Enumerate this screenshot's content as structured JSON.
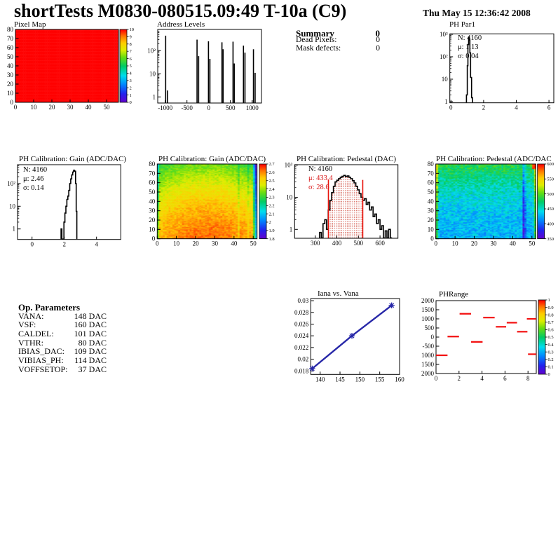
{
  "header": {
    "title": "shortTests M0830-080515.09:49 T-10a (C9)",
    "date": "Thu May 15 12:36:42 2008"
  },
  "summary": {
    "heading": "Summary",
    "total": "0",
    "rows": [
      {
        "label": "Dead Pixels:",
        "value": "0"
      },
      {
        "label": "Mask defects:",
        "value": "0"
      }
    ]
  },
  "op_parameters": {
    "heading": "Op. Parameters",
    "unit": "DAC",
    "rows": [
      {
        "label": "VANA:",
        "value": "148 DAC"
      },
      {
        "label": "VSF:",
        "value": "160 DAC"
      },
      {
        "label": "CALDEL:",
        "value": "101 DAC"
      },
      {
        "label": "VTHR:",
        "value": "80 DAC"
      },
      {
        "label": "IBIAS_DAC:",
        "value": "109 DAC"
      },
      {
        "label": "VIBIAS_PH:",
        "value": "114 DAC"
      },
      {
        "label": "VOFFSETOP:",
        "value": "37 DAC"
      }
    ]
  },
  "chart_data": [
    {
      "id": "pixel_map",
      "type": "heatmap",
      "title": "Pixel Map",
      "x_ticks": [
        0,
        10,
        20,
        30,
        40,
        50
      ],
      "y_ticks": [
        0,
        10,
        20,
        30,
        40,
        50,
        60,
        70,
        80
      ],
      "nx": 52,
      "ny": 80,
      "uniform": 10,
      "zmin": 0,
      "zmax": 10,
      "colorbar_labels": [
        "10",
        "9",
        "8",
        "7",
        "6",
        "5",
        "4",
        "3",
        "2",
        "1",
        "0"
      ]
    },
    {
      "id": "address_levels",
      "type": "spikes",
      "title": "Address Levels",
      "x_ticks": [
        -1000,
        -500,
        0,
        500,
        1000
      ],
      "log_labels": [
        "1",
        "10",
        "10²"
      ],
      "spikes": [
        [
          -990,
          445
        ],
        [
          -948,
          1.9
        ],
        [
          -268,
          300
        ],
        [
          -231,
          58
        ],
        [
          -5,
          255
        ],
        [
          28,
          44
        ],
        [
          305,
          230
        ],
        [
          332,
          115
        ],
        [
          560,
          245
        ],
        [
          588,
          28
        ],
        [
          800,
          165
        ],
        [
          835,
          82
        ],
        [
          1030,
          115
        ],
        [
          1068,
          11
        ]
      ]
    },
    {
      "id": "ph_par1",
      "type": "hist",
      "title": "PH Par1",
      "stats": [
        {
          "text": "N: 4160",
          "color": "#000000"
        },
        {
          "text": "μ: 1.13",
          "color": "#000000"
        },
        {
          "text": "σ: 0.04",
          "color": "#000000"
        }
      ],
      "x_ticks": [
        0,
        2,
        4,
        6
      ],
      "log_labels": [
        "1",
        "10",
        "10²",
        "10³"
      ],
      "edges": [
        0.95,
        1.0,
        1.04,
        1.08,
        1.12,
        1.16,
        1.2,
        1.26,
        1.32
      ],
      "counts": [
        2,
        40,
        350,
        750,
        560,
        150,
        12,
        1.5
      ]
    },
    {
      "id": "gain_hist",
      "type": "hist",
      "title": "PH Calibration: Gain (ADC/DAC)",
      "stats": [
        {
          "text": "N: 4160",
          "color": "#000000"
        },
        {
          "text": "μ: 2.46",
          "color": "#000000"
        },
        {
          "text": "σ: 0.14",
          "color": "#000000"
        }
      ],
      "x_ticks": [
        0,
        2,
        4
      ],
      "log_labels": [
        "1",
        "10",
        "10²"
      ],
      "edges": [
        1.8,
        1.85,
        1.9,
        1.98,
        2.04,
        2.1,
        2.16,
        2.22,
        2.28,
        2.34,
        2.4,
        2.46,
        2.52,
        2.58,
        2.64,
        2.7,
        2.74,
        2.78
      ],
      "counts": [
        1,
        0,
        0,
        2,
        5,
        10,
        20,
        28,
        50,
        100,
        160,
        240,
        320,
        380,
        350,
        100,
        6
      ]
    },
    {
      "id": "gain_map",
      "type": "heatmap",
      "title": "PH Calibration: Gain (ADC/DAC)",
      "x_ticks": [
        0,
        10,
        20,
        30,
        40,
        50
      ],
      "y_ticks": [
        0,
        10,
        20,
        30,
        40,
        50,
        60,
        70,
        80
      ],
      "nx": 52,
      "ny": 80,
      "zmin": 1.8,
      "zmax": 2.7,
      "seed": 7,
      "field": {
        "base": 2.62,
        "yamp": -0.26,
        "ypow": 1.6,
        "xquad": -0.07,
        "noise": 0.045,
        "cols": {
          "0": -0.18,
          "42": -0.06,
          "47": -0.05,
          "50": -0.22,
          "51": -0.45
        }
      },
      "colorbar_labels": [
        "2.7",
        "2.6",
        "2.5",
        "2.4",
        "2.3",
        "2.2",
        "2.1",
        "2",
        "1.9",
        "1.8"
      ]
    },
    {
      "id": "pedestal_hist",
      "type": "hist",
      "title": "PH Calibration: Pedestal (DAC)",
      "stats": [
        {
          "text": "N: 4160",
          "color": "#000000"
        },
        {
          "text": "μ: 433.4",
          "color": "#d81515"
        },
        {
          "text": "σ: 28.6",
          "color": "#d81515"
        }
      ],
      "x_ticks": [
        300,
        400,
        500,
        600
      ],
      "log_labels": [
        "1",
        "10",
        "10²"
      ],
      "vlines": [
        361,
        520
      ],
      "fill_between": [
        361,
        520
      ],
      "edges": [
        320,
        328,
        336,
        344,
        352,
        360,
        368,
        376,
        384,
        392,
        400,
        408,
        416,
        424,
        432,
        440,
        448,
        456,
        464,
        472,
        480,
        488,
        496,
        504,
        512,
        520,
        528,
        536,
        544,
        552,
        560,
        568,
        576,
        584,
        592,
        600,
        608,
        616,
        624,
        632,
        640,
        648,
        656
      ],
      "counts": [
        0.8,
        0,
        1.5,
        2,
        1,
        4,
        8,
        14,
        22,
        30,
        34,
        38,
        42,
        45,
        48,
        44,
        46,
        42,
        38,
        33,
        28,
        22,
        17,
        13,
        10,
        8,
        9,
        6,
        7,
        4,
        5,
        2.5,
        3,
        1.5,
        2,
        1,
        1.3,
        0,
        0.9,
        0,
        1,
        0
      ]
    },
    {
      "id": "pedestal_map",
      "type": "heatmap",
      "title": "PH Calibration: Pedestal (ADC/DAC",
      "x_ticks": [
        0,
        10,
        20,
        30,
        40,
        50
      ],
      "y_ticks": [
        0,
        10,
        20,
        30,
        40,
        50,
        60,
        70,
        80
      ],
      "nx": 52,
      "ny": 80,
      "zmin": 350,
      "zmax": 600,
      "seed": 13,
      "field": {
        "base": 428,
        "yamp": 60,
        "ypow": 2,
        "xquad": 0,
        "noise": 22,
        "cols": {
          "0": 55,
          "45": -55,
          "46": -30,
          "51": 55
        },
        "hot": {
          "x0": 50,
          "y0": 75,
          "z": 590
        }
      },
      "colorbar_labels": [
        "600",
        "550",
        "500",
        "450",
        "400",
        "350"
      ]
    },
    {
      "id": "iana",
      "type": "line",
      "title": "Iana vs. Vana",
      "x_ticks": [
        140,
        145,
        150,
        155,
        160
      ],
      "y_ticks": [
        "0.018",
        "0.02",
        "0.022",
        "0.024",
        "0.026",
        "0.028",
        "0.03"
      ],
      "points": [
        [
          138,
          0.0184
        ],
        [
          148,
          0.024
        ],
        [
          158,
          0.0292
        ]
      ],
      "color": "#2727a8"
    },
    {
      "id": "phrange",
      "type": "segments",
      "title": "PHRange",
      "x_ticks": [
        0,
        2,
        4,
        6,
        8
      ],
      "y_tick_labels": [
        "2000",
        "1500",
        "1000",
        "500",
        "0",
        "-500",
        "1000",
        "1500",
        "2000"
      ],
      "segments": [
        [
          0,
          1,
          -1000
        ],
        [
          1,
          2,
          30
        ],
        [
          2.05,
          3.05,
          1280
        ],
        [
          3.05,
          4.05,
          -265
        ],
        [
          4.1,
          5.1,
          1070
        ],
        [
          5.2,
          6.1,
          565
        ],
        [
          6.15,
          7.05,
          790
        ],
        [
          7.05,
          7.95,
          295
        ],
        [
          7.9,
          8.72,
          1000
        ],
        [
          8.0,
          8.72,
          -940
        ]
      ],
      "color": "#f31111",
      "colorbar_labels": [
        "1",
        "0.9",
        "0.8",
        "0.7",
        "0.6",
        "0.5",
        "0.4",
        "0.3",
        "0.2",
        "0.1",
        "0"
      ]
    }
  ]
}
